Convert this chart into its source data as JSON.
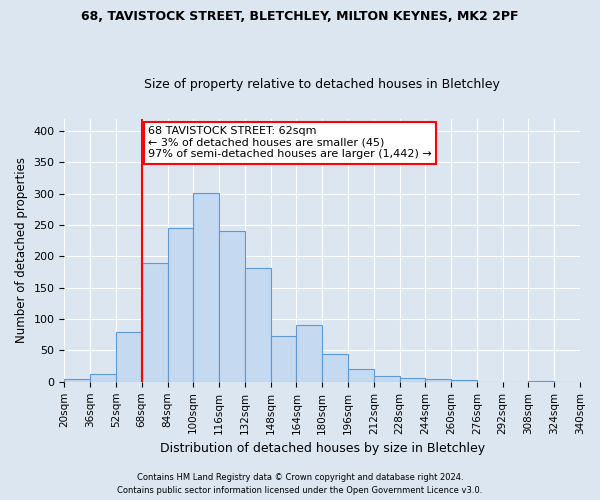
{
  "title1": "68, TAVISTOCK STREET, BLETCHLEY, MILTON KEYNES, MK2 2PF",
  "title2": "Size of property relative to detached houses in Bletchley",
  "xlabel": "Distribution of detached houses by size in Bletchley",
  "ylabel": "Number of detached properties",
  "bar_color": "#c5d9f0",
  "bar_edge_color": "#5b9bd5",
  "background_color": "#dce6f1",
  "grid_color": "#ffffff",
  "bins": [
    "20sqm",
    "36sqm",
    "52sqm",
    "68sqm",
    "84sqm",
    "100sqm",
    "116sqm",
    "132sqm",
    "148sqm",
    "164sqm",
    "180sqm",
    "196sqm",
    "212sqm",
    "228sqm",
    "244sqm",
    "260sqm",
    "276sqm",
    "292sqm",
    "308sqm",
    "324sqm",
    "340sqm"
  ],
  "bar_heights": [
    4,
    13,
    80,
    190,
    246,
    302,
    241,
    181,
    73,
    90,
    44,
    21,
    10,
    6,
    5,
    3,
    0,
    0,
    2,
    0
  ],
  "ylim": [
    0,
    420
  ],
  "yticks": [
    0,
    50,
    100,
    150,
    200,
    250,
    300,
    350,
    400
  ],
  "property_size": 62,
  "property_label": "68 TAVISTOCK STREET: 62sqm",
  "annotation_line1": "← 3% of detached houses are smaller (45)",
  "annotation_line2": "97% of semi-detached houses are larger (1,442) →",
  "vline_x": 68,
  "footer1": "Contains HM Land Registry data © Crown copyright and database right 2024.",
  "footer2": "Contains public sector information licensed under the Open Government Licence v3.0."
}
